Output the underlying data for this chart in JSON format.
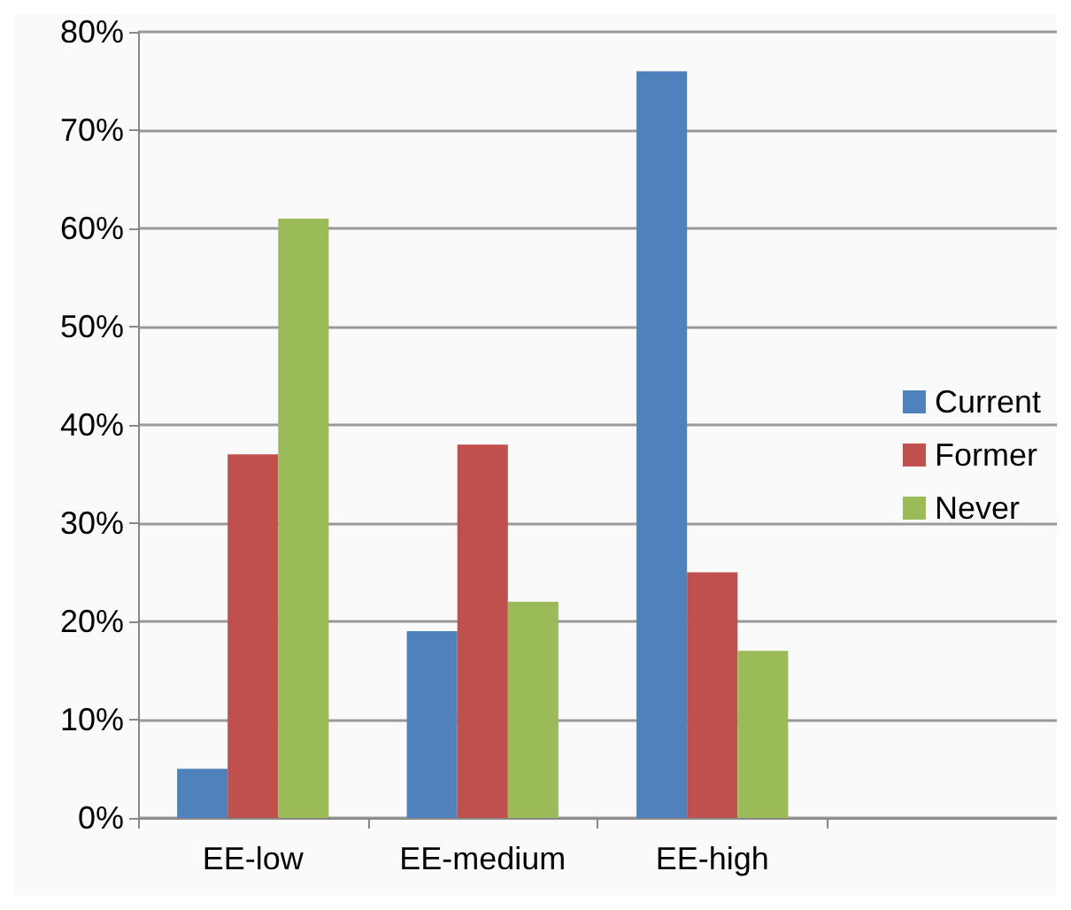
{
  "chart_data": {
    "type": "bar",
    "categories": [
      "EE-low",
      "EE-medium",
      "EE-high",
      null
    ],
    "series": [
      {
        "name": "Current",
        "color": "#4f81bd",
        "values": [
          5,
          19,
          76,
          null
        ]
      },
      {
        "name": "Former",
        "color": "#c0504d",
        "values": [
          37,
          38,
          25,
          null
        ]
      },
      {
        "name": "Never",
        "color": "#9bbb59",
        "values": [
          61,
          22,
          17,
          null
        ]
      }
    ],
    "ylim": [
      0,
      80
    ],
    "yticks": [
      {
        "value": 0,
        "label": "0%"
      },
      {
        "value": 10,
        "label": "10%"
      },
      {
        "value": 20,
        "label": "20%"
      },
      {
        "value": 30,
        "label": "30%"
      },
      {
        "value": 40,
        "label": "40%"
      },
      {
        "value": 50,
        "label": "50%"
      },
      {
        "value": 60,
        "label": "60%"
      },
      {
        "value": 70,
        "label": "70%"
      },
      {
        "value": 80,
        "label": "80%"
      }
    ],
    "grid": "y",
    "legend": "right"
  }
}
